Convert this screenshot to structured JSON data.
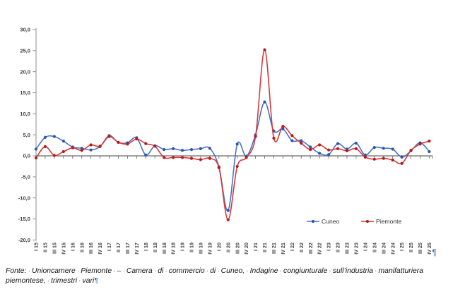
{
  "document": {
    "pilcrow": "¶",
    "footer": {
      "line1": "Fonte: Unioncamere Piemonte – Camera di commercio di Cuneo, Indagine congiunturale sull’industria manifatturiera",
      "line2": "piemontese, trimestri vari"
    },
    "formatting_mark_color": "#3e6fc1"
  },
  "chart_data": {
    "type": "line",
    "smoothed": true,
    "title": "",
    "xlabel": "",
    "ylabel": "",
    "grid": false,
    "legend_position": "bottom-inside",
    "ylim": [
      -20,
      30
    ],
    "y_ticks": [
      {
        "value": 30,
        "label": "30,0"
      },
      {
        "value": 25,
        "label": "25,0"
      },
      {
        "value": 20,
        "label": "20,0"
      },
      {
        "value": 15,
        "label": "15,0"
      },
      {
        "value": 10,
        "label": "10,0"
      },
      {
        "value": 5,
        "label": "5,0"
      },
      {
        "value": 0,
        "label": "0,0"
      },
      {
        "value": -5,
        "label": "-5,0"
      },
      {
        "value": -10,
        "label": "-10,0"
      },
      {
        "value": -15,
        "label": "-15,0"
      },
      {
        "value": -20,
        "label": "-20,0"
      }
    ],
    "categories": [
      "I 15",
      "II 15",
      "III 15",
      "IV 15",
      "I 16",
      "II 16",
      "III 16",
      "IV 16",
      "I 17",
      "II 17",
      "III 17",
      "IV 17",
      "I 18",
      "II 18",
      "III 18",
      "IV 18",
      "I 19",
      "II 19",
      "III 19",
      "IV 19",
      "I 20",
      "II 20",
      "III 20",
      "IV 20",
      "I 21",
      "II 21",
      "III 21",
      "IV 21",
      "I 22",
      "II 22",
      "III 22",
      "IV 22",
      "I 23",
      "II 23",
      "III 23",
      "IV 23",
      "I 24",
      "II 24",
      "III 24",
      "IV 24",
      "I 25",
      "II 25",
      "III 25",
      "IV 25"
    ],
    "series": [
      {
        "name": "Cuneo",
        "color": "#4a73c4",
        "marker_color": "#2d55b0",
        "values": [
          1.6,
          4.4,
          4.6,
          3.5,
          2.1,
          1.8,
          1.4,
          2.2,
          4.8,
          3.2,
          3.1,
          4.3,
          0.2,
          2.4,
          1.5,
          1.7,
          1.3,
          1.5,
          1.7,
          1.8,
          -2.6,
          -13.0,
          2.8,
          -0.1,
          5.0,
          12.8,
          5.9,
          6.4,
          3.6,
          3.6,
          2.1,
          0.6,
          0.3,
          2.9,
          1.6,
          3.0,
          0.2,
          2.0,
          1.8,
          1.6,
          -0.3,
          1.2,
          3.1,
          1.0
        ]
      },
      {
        "name": "Piemonte",
        "color": "#d23c3c",
        "marker_color": "#bf1717",
        "values": [
          -0.5,
          2.2,
          0.1,
          1.0,
          1.9,
          1.3,
          2.6,
          2.3,
          4.6,
          3.2,
          2.8,
          4.0,
          2.9,
          2.3,
          -0.4,
          -0.4,
          -0.4,
          -0.6,
          -0.9,
          -0.6,
          -2.8,
          -15.2,
          -2.5,
          -0.4,
          4.6,
          25.2,
          4.2,
          7.0,
          4.8,
          3.0,
          1.5,
          2.6,
          1.4,
          1.7,
          1.2,
          1.7,
          -0.3,
          -0.8,
          -0.6,
          -1.0,
          -1.8,
          1.3,
          2.8,
          3.5
        ]
      }
    ],
    "axis_color": "#8c8c8c",
    "category_axis_color": "#6f6f6f",
    "tick_label_color": "#3f3f3f"
  }
}
